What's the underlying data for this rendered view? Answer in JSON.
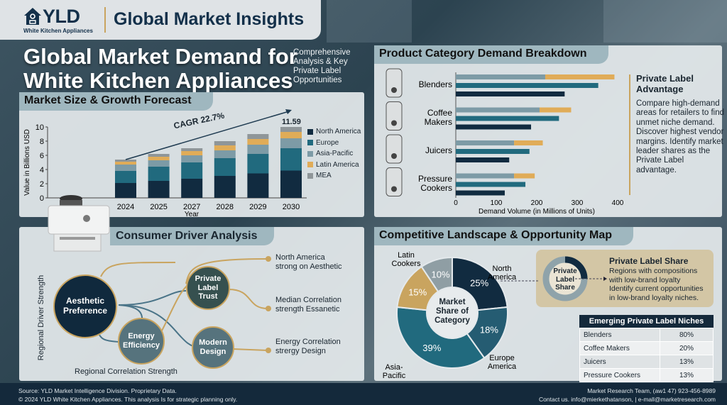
{
  "header": {
    "logo": "YLD",
    "logo_sub": "White Kitchen Appliances",
    "title": "Global Market Insights"
  },
  "hero": {
    "title_line1": "Global Market Demand for",
    "title_line2": "White Kitchen Appliances",
    "subtitle": [
      "Comprehensive",
      "Analysis & Key",
      "Private Label",
      "Opportunities"
    ]
  },
  "colors": {
    "north_america": "#112b40",
    "europe": "#216a7e",
    "asia_pacific": "#7d9ba6",
    "latin_america": "#e0ac58",
    "mea": "#8f9699",
    "accent_gold": "#c9a45f"
  },
  "market_panel": {
    "title": "Market Size & Growth Forecast",
    "cagr": "CAGR 22.7%",
    "top_label": "11.59"
  },
  "product_panel": {
    "title": "Product Category Demand Breakdown",
    "side_title": "Private Label Advantage",
    "side_text": "Compare high-demand areas for retailers to find unmet niche demand. Discover highest vendor margins. Identify market leader shares as the Private Label advantage.",
    "icons": [
      "blender-icon",
      "coffee-maker-icon",
      "juicer-icon",
      "pressure-cooker-icon"
    ]
  },
  "driver_panel": {
    "title": "Consumer Driver Analysis",
    "y_label": "Regional Driver Strength",
    "x_label": "Regional Correlation Strength",
    "nodes": [
      "Aesthetic Preference",
      "Energy Efficiency",
      "Private Label Trust",
      "Modern Design"
    ],
    "notes": [
      [
        "North America",
        "strong on Aesthetic"
      ],
      [
        "Median Correlation",
        "strength Essanetic"
      ],
      [
        "Energy Correlation",
        "strergy Design"
      ]
    ]
  },
  "competitive_panel": {
    "title": "Competitive Landscape & Opportunity Map",
    "donut_center": [
      "Market",
      "Share of",
      "Category"
    ],
    "pl_share": {
      "ring_label": [
        "Private",
        "Label",
        "Share"
      ],
      "title": "Private Label Share",
      "text": [
        "Regions with compositions",
        "with low-brand loyalty",
        "Identify current opportunities",
        "in low-brand loyalty niches."
      ],
      "fraction": 0.25
    },
    "table": {
      "header": "Emerging Private Label Niches",
      "rows": [
        [
          "Blenders",
          "80%"
        ],
        [
          "Coffee Makers",
          "20%"
        ],
        [
          "Juicers",
          "13%"
        ],
        [
          "Pressure Cookers",
          "13%"
        ]
      ]
    }
  },
  "footer": {
    "left1": "Source: YLD Market Intelligence Division. Proprietary Data.",
    "left2": "© 2024 YLD White Kitchen Appliances. This analysis Is for strategic planning only.",
    "right1": "Market Research Team, (aw1 47) 923-456-8989",
    "right2": "Contact us. info@mierkethatanson, | e-mall@marketresearch.com"
  },
  "chart_data": [
    {
      "type": "bar",
      "stacked": true,
      "title": "Market Size & Growth Forecast",
      "xlabel": "Year",
      "ylabel": "Value in Billions USD",
      "ylim": [
        0,
        10
      ],
      "yticks": [
        0,
        2,
        4,
        6,
        8,
        10
      ],
      "legend": "right",
      "categories": [
        "2024",
        "2025",
        "2027",
        "2028",
        "2029",
        "2030"
      ],
      "series": [
        {
          "name": "North America",
          "values": [
            2.1,
            2.4,
            2.7,
            3.1,
            3.45,
            3.85
          ]
        },
        {
          "name": "Europe",
          "values": [
            1.7,
            2.0,
            2.3,
            2.5,
            2.75,
            3.15
          ]
        },
        {
          "name": "Asia-Pacific",
          "values": [
            0.9,
            0.9,
            1.0,
            1.1,
            1.3,
            1.4
          ]
        },
        {
          "name": "Latin America",
          "values": [
            0.4,
            0.5,
            0.6,
            0.7,
            0.8,
            0.9
          ]
        },
        {
          "name": "MEA",
          "values": [
            0.3,
            0.4,
            0.4,
            0.6,
            0.7,
            0.7
          ]
        }
      ]
    },
    {
      "type": "bar",
      "orientation": "horizontal",
      "xlabel": "Demand Volume (in Millions of Units)",
      "xlim": [
        0,
        400
      ],
      "xticks": [
        0,
        100,
        200,
        300,
        400
      ],
      "categories": [
        "Blenders",
        "Coffee Makers",
        "Juicers",
        "Pressure Cookers"
      ],
      "series": [
        {
          "values": [
            221,
            207,
            144,
            144
          ],
          "color": "#7d9ba6",
          "stack": "a"
        },
        {
          "values": [
            171,
            78,
            71,
            51
          ],
          "color": "#e0ac58",
          "stack": "a"
        },
        {
          "values": [
            352,
            255,
            182,
            172
          ],
          "color": "#216a7e"
        },
        {
          "values": [
            269,
            186,
            132,
            121
          ],
          "color": "#112b40"
        }
      ]
    },
    {
      "type": "pie",
      "donut": true,
      "slices": [
        {
          "label": "North America",
          "value": 25,
          "display": "25%",
          "color": "#112b40"
        },
        {
          "label": "Europe America",
          "value": 18,
          "display": "18%",
          "color": "#255c72"
        },
        {
          "label": "Asia-Pacific",
          "value": 39,
          "display": "39%",
          "color": "#216a7e"
        },
        {
          "label": "Latin Cookers",
          "value": 15,
          "display": "15%",
          "color": "#c9a45f"
        },
        {
          "label": "",
          "value": 10,
          "display": "10%",
          "color": "#8f9ea4"
        }
      ]
    }
  ]
}
